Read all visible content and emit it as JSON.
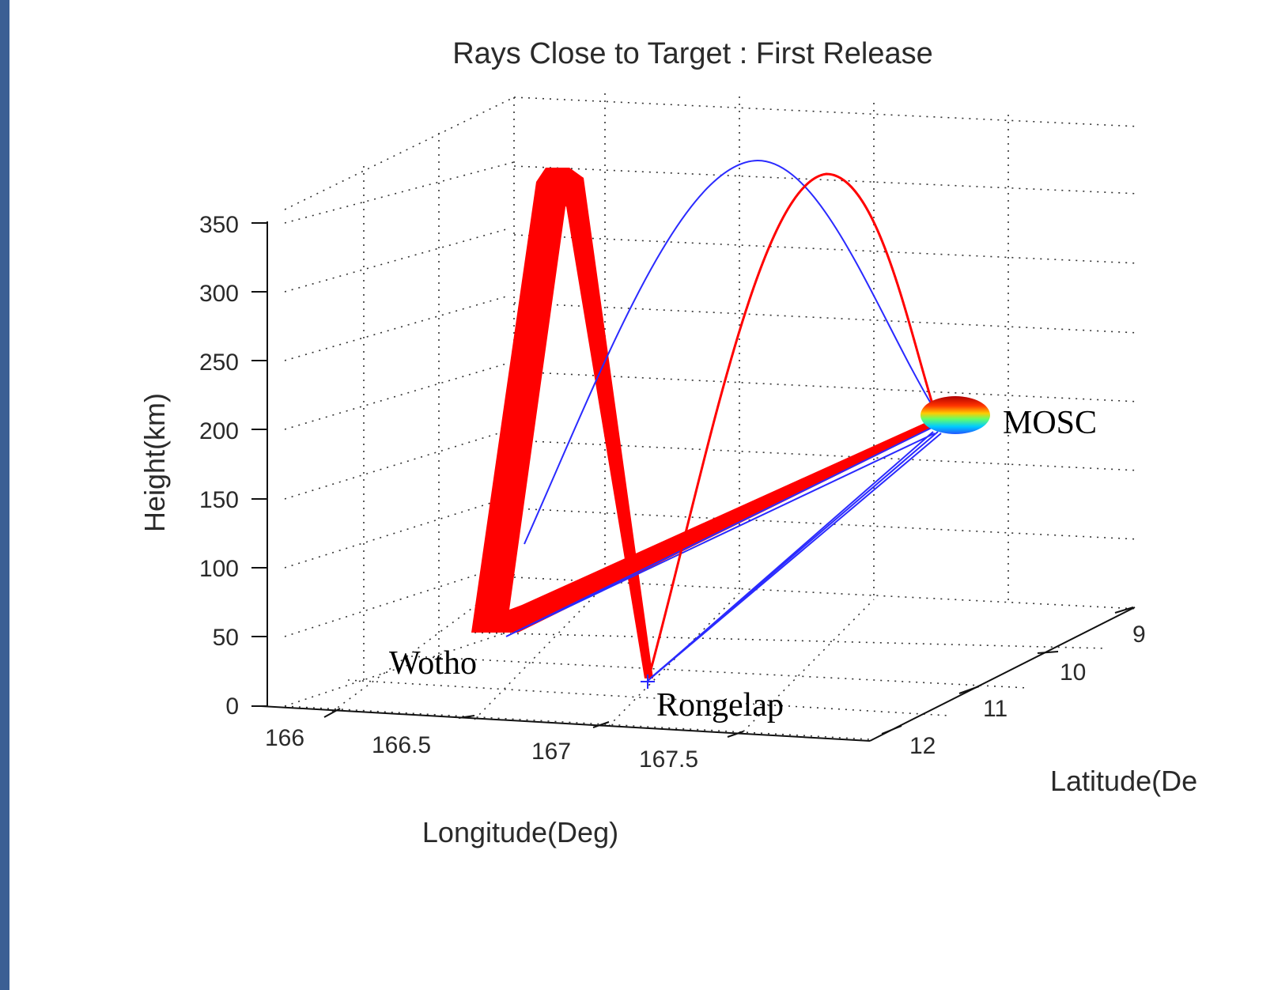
{
  "chart_data": {
    "type": "line",
    "projection": "3d",
    "title": "Rays Close to Target : First Release",
    "xlabel": "Longitude(Deg)",
    "ylabel": "Latitude(De",
    "zlabel": "Height(km)",
    "xlim": [
      166,
      167.5
    ],
    "ylim": [
      9,
      12
    ],
    "zlim": [
      0,
      350
    ],
    "x_ticks": [
      "166",
      "166.5",
      "167",
      "167.5"
    ],
    "y_ticks": [
      "9",
      "10",
      "11",
      "12"
    ],
    "z_ticks": [
      "0",
      "50",
      "100",
      "150",
      "200",
      "250",
      "300",
      "350"
    ],
    "grid": true,
    "locations": [
      {
        "name": "Wotho"
      },
      {
        "name": "Rongelap"
      },
      {
        "name": "MOSC"
      }
    ],
    "series": [
      {
        "color": "#ff0000",
        "description_values": {
          "apex_height_km": 355
        }
      },
      {
        "color": "#2222ff",
        "description_values": {
          "apex_height_km": 360
        }
      },
      {
        "color": "#ff0000",
        "description_values": {
          "apex_height_km": 350
        }
      }
    ]
  }
}
